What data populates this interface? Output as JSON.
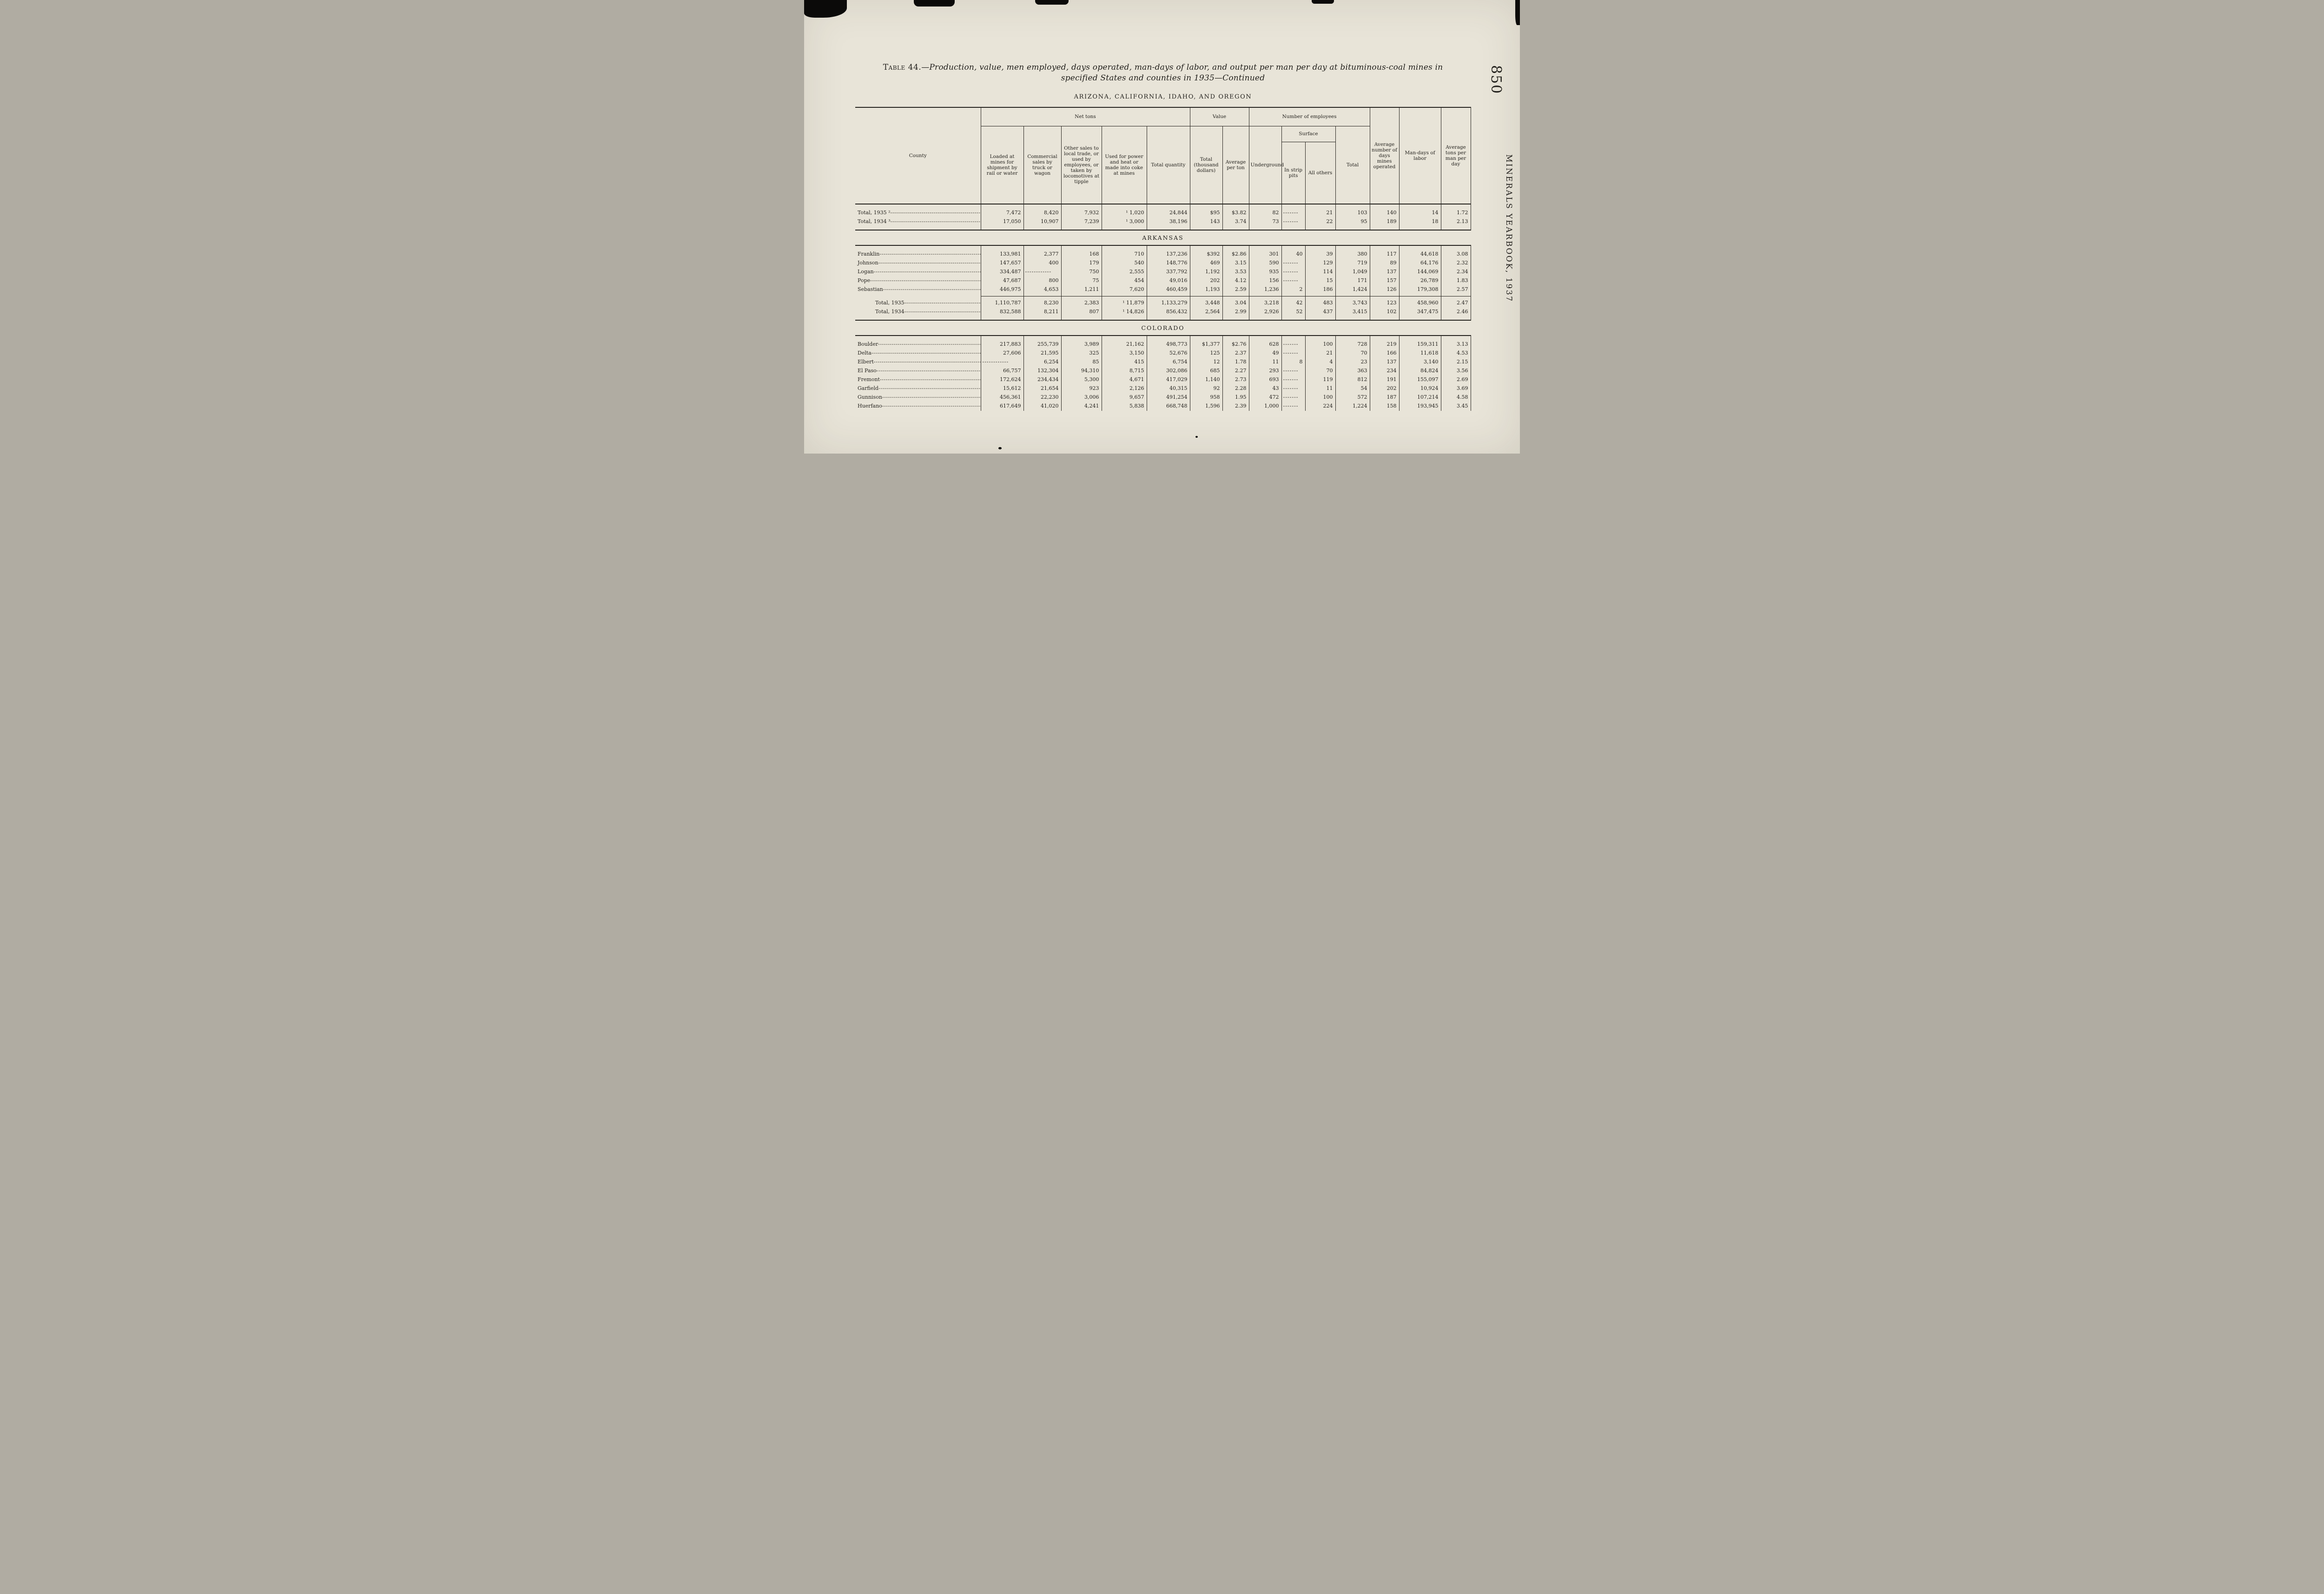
{
  "page": {
    "number": "850",
    "side_title": "MINERALS YEARBOOK, 1937"
  },
  "title": {
    "label": "Table 44.",
    "line1": "—Production, value, men employed, days operated, man-days of labor, and output per man per day at bituminous-coal mines in",
    "line2": "specified States and counties in 1935—Continued"
  },
  "table": {
    "first_heading": "ARIZONA, CALIFORNIA, IDAHO, AND OREGON",
    "header": {
      "county": "County",
      "group_net_tons": "Net tons",
      "group_value": "Value",
      "group_employees": "Number of employees",
      "group_surface": "Surface",
      "col_loaded": "Loaded at mines for shipment by rail or water",
      "col_commercial": "Commercial sales by truck or wagon",
      "col_other_sales": "Other sales to local trade, or used by employees, or taken by locomotives at tipple",
      "col_used_power": "Used for power and heat or made into coke at mines",
      "col_total_quantity": "Total quantity",
      "col_value_total": "Total (thousand dollars)",
      "col_value_avg": "Average per ton",
      "col_underground": "Underground",
      "col_strip_pits": "In strip pits",
      "col_all_others": "All others",
      "col_emp_total": "Total",
      "col_avg_days": "Average number of days mines operated",
      "col_man_days": "Man-days of labor",
      "col_avg_tons": "Average tons per man per day"
    },
    "sections": [
      {
        "rows": [
          {
            "label": "Total, 1935 ²",
            "values": [
              "7,472",
              "8,420",
              "7,932",
              "¹ 1,020",
              "24,844",
              "$95",
              "$3.82",
              "82",
              "-------",
              "21",
              "103",
              "140",
              "14",
              "1.72"
            ]
          },
          {
            "label": "Total, 1934 ³",
            "values": [
              "17,050",
              "10,907",
              "7,239",
              "¹ 3,000",
              "38,196",
              "143",
              "3.74",
              "73",
              "-------",
              "22",
              "95",
              "189",
              "18",
              "2.13"
            ]
          }
        ]
      },
      {
        "heading": "ARKANSAS",
        "rows": [
          {
            "label": "Franklin",
            "values": [
              "133,981",
              "2,377",
              "168",
              "710",
              "137,236",
              "$392",
              "$2.86",
              "301",
              "40",
              "39",
              "380",
              "117",
              "44,618",
              "3.08"
            ]
          },
          {
            "label": "Johnson",
            "values": [
              "147,657",
              "400",
              "179",
              "540",
              "148,776",
              "469",
              "3.15",
              "590",
              "-------",
              "129",
              "719",
              "89",
              "64,176",
              "2.32"
            ]
          },
          {
            "label": "Logan",
            "values": [
              "334,487",
              "------------",
              "750",
              "2,555",
              "337,792",
              "1,192",
              "3.53",
              "935",
              "-------",
              "114",
              "1,049",
              "137",
              "144,069",
              "2.34"
            ]
          },
          {
            "label": "Pope",
            "values": [
              "47,687",
              "800",
              "75",
              "454",
              "49,016",
              "202",
              "4.12",
              "156",
              "-------",
              "15",
              "171",
              "157",
              "26,789",
              "1.83"
            ]
          },
          {
            "label": "Sebastian",
            "values": [
              "446,975",
              "4,653",
              "1,211",
              "7,620",
              "460,459",
              "1,193",
              "2.59",
              "1,236",
              "2",
              "186",
              "1,424",
              "126",
              "179,308",
              "2.57"
            ]
          }
        ],
        "totals": [
          {
            "label": "Total, 1935",
            "values": [
              "1,110,787",
              "8,230",
              "2,383",
              "¹ 11,879",
              "1,133,279",
              "3,448",
              "3.04",
              "3,218",
              "42",
              "483",
              "3,743",
              "123",
              "458,960",
              "2.47"
            ]
          },
          {
            "label": "Total, 1934",
            "values": [
              "832,588",
              "8,211",
              "807",
              "¹ 14,826",
              "856,432",
              "2,564",
              "2.99",
              "2,926",
              "52",
              "437",
              "3,415",
              "102",
              "347,475",
              "2.46"
            ]
          }
        ]
      },
      {
        "heading": "COLORADO",
        "rows": [
          {
            "label": "Boulder",
            "values": [
              "217,883",
              "255,739",
              "3,989",
              "21,162",
              "498,773",
              "$1,377",
              "$2.76",
              "628",
              "-------",
              "100",
              "728",
              "219",
              "159,311",
              "3.13"
            ]
          },
          {
            "label": "Delta",
            "values": [
              "27,606",
              "21,595",
              "325",
              "3,150",
              "52,676",
              "125",
              "2.37",
              "49",
              "-------",
              "21",
              "70",
              "166",
              "11,618",
              "4.53"
            ]
          },
          {
            "label": "Elbert",
            "values": [
              "------------",
              "6,254",
              "85",
              "415",
              "6,754",
              "12",
              "1.78",
              "11",
              "8",
              "4",
              "23",
              "137",
              "3,140",
              "2.15"
            ]
          },
          {
            "label": "El Paso",
            "values": [
              "66,757",
              "132,304",
              "94,310",
              "8,715",
              "302,086",
              "685",
              "2.27",
              "293",
              "-------",
              "70",
              "363",
              "234",
              "84,824",
              "3.56"
            ]
          },
          {
            "label": "Fremont",
            "values": [
              "172,624",
              "234,434",
              "5,300",
              "4,671",
              "417,029",
              "1,140",
              "2.73",
              "693",
              "-------",
              "119",
              "812",
              "191",
              "155,097",
              "2.69"
            ]
          },
          {
            "label": "Garfield",
            "values": [
              "15,612",
              "21,654",
              "923",
              "2,126",
              "40,315",
              "92",
              "2.28",
              "43",
              "-------",
              "11",
              "54",
              "202",
              "10,924",
              "3.69"
            ]
          },
          {
            "label": "Gunnison",
            "values": [
              "456,361",
              "22,230",
              "3,006",
              "9,657",
              "491,254",
              "958",
              "1.95",
              "472",
              "-------",
              "100",
              "572",
              "187",
              "107,214",
              "4.58"
            ]
          },
          {
            "label": "Huerfano",
            "values": [
              "617,649",
              "41,020",
              "4,241",
              "5,838",
              "668,748",
              "1,596",
              "2.39",
              "1,000",
              "-------",
              "224",
              "1,224",
              "158",
              "193,945",
              "3.45"
            ]
          }
        ]
      }
    ]
  }
}
